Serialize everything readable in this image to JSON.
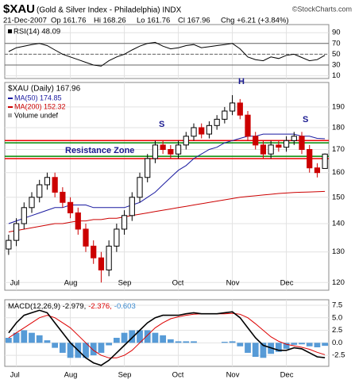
{
  "header": {
    "title": "$XAU",
    "subtitle": "(Gold & Silver Index - Philadelphia) INDX",
    "source": "©StockCharts.com",
    "date": "21-Dec-2007",
    "stats": [
      "Op 161.76",
      "Hi 168.26",
      "Lo 161.76",
      "Cl 167.96",
      "Chg +6.21 (+3.84%)"
    ]
  },
  "chart_data": [
    {
      "type": "rsi",
      "title": "RSI(14) 48.09",
      "color": "#000000",
      "ylim": [
        5,
        105
      ],
      "yticks": [
        10,
        30,
        50,
        70,
        90
      ],
      "reference": [
        70,
        50,
        30
      ],
      "values": [
        55,
        62,
        65,
        68,
        70,
        66,
        58,
        50,
        45,
        40,
        35,
        30,
        28,
        38,
        45,
        50,
        58,
        65,
        70,
        72,
        65,
        60,
        62,
        66,
        68,
        62,
        64,
        66,
        68,
        70,
        60,
        45,
        40,
        38,
        45,
        42,
        48,
        50,
        44,
        38,
        40,
        48.09
      ]
    },
    {
      "type": "candlestick",
      "title": "$XAU (Daily) 167.96",
      "log": true,
      "grid": true,
      "up_color": "#000000",
      "down_color": "#cc0000",
      "categories": [
        null,
        "Jul",
        null,
        null,
        null,
        null,
        null,
        null,
        "Aug",
        null,
        null,
        null,
        null,
        null,
        null,
        "Sep",
        null,
        null,
        null,
        null,
        null,
        null,
        "Oct",
        null,
        null,
        null,
        null,
        null,
        null,
        "Nov",
        null,
        null,
        null,
        null,
        null,
        null,
        "Dec",
        null,
        null,
        null,
        null,
        null
      ],
      "open": [
        131,
        134,
        140,
        146,
        150,
        155,
        158,
        152,
        148,
        144,
        138,
        132,
        128,
        124,
        132,
        138,
        143,
        150,
        158,
        166,
        172,
        170,
        168,
        172,
        176,
        180,
        177,
        181,
        184,
        188,
        192,
        186,
        176,
        172,
        168,
        172,
        171,
        174,
        176,
        170,
        162,
        161.76
      ],
      "high": [
        136,
        142,
        148,
        152,
        157,
        160,
        160,
        154,
        150,
        146,
        140,
        134,
        130,
        134,
        140,
        145,
        152,
        160,
        168,
        174,
        174,
        172,
        174,
        178,
        182,
        182,
        183,
        186,
        190,
        196,
        194,
        188,
        178,
        174,
        174,
        174,
        176,
        178,
        178,
        172,
        164,
        168.26
      ],
      "low": [
        129,
        132,
        138,
        144,
        148,
        153,
        150,
        146,
        142,
        136,
        130,
        126,
        120,
        122,
        130,
        136,
        141,
        148,
        156,
        164,
        168,
        166,
        166,
        170,
        174,
        175,
        175,
        179,
        182,
        186,
        184,
        174,
        170,
        166,
        166,
        169,
        169,
        172,
        168,
        160,
        158,
        161.76
      ],
      "close": [
        134,
        140,
        146,
        150,
        155,
        158,
        152,
        148,
        144,
        138,
        132,
        128,
        124,
        132,
        138,
        143,
        150,
        158,
        166,
        172,
        170,
        168,
        172,
        176,
        180,
        177,
        181,
        184,
        188,
        192,
        186,
        176,
        172,
        168,
        172,
        171,
        174,
        176,
        170,
        162,
        160,
        167.96
      ],
      "series": [
        {
          "name": "MA(50) 174.85",
          "color": "#1a1aa0",
          "values": [
            140,
            141,
            142,
            143,
            144,
            145,
            146,
            146,
            147,
            147,
            147,
            146,
            146,
            146,
            146,
            146,
            147,
            148,
            150,
            152,
            155,
            158,
            161,
            163,
            166,
            168,
            170,
            171,
            173,
            174,
            175,
            176,
            176,
            177,
            177,
            177,
            177,
            177,
            176,
            176,
            175,
            174.85
          ]
        },
        {
          "name": "MA(200) 152.32",
          "color": "#cc0000",
          "values": [
            137,
            137.5,
            138,
            138.5,
            139,
            139.5,
            140,
            140,
            140.5,
            141,
            141,
            141.5,
            141.5,
            142,
            142,
            142.5,
            143,
            143.5,
            144,
            144.5,
            145,
            145.5,
            146,
            146.5,
            147,
            147.5,
            148,
            148.5,
            149,
            149.5,
            150,
            150.3,
            150.6,
            150.9,
            151.2,
            151.5,
            151.7,
            151.9,
            152,
            152.1,
            152.2,
            152.32
          ]
        }
      ],
      "volume_label": "Volume undef",
      "hlines": [
        {
          "value": 174,
          "color": "#ee0000"
        },
        {
          "value": 173,
          "color": "#008800"
        },
        {
          "value": 167,
          "color": "#008800"
        },
        {
          "value": 166,
          "color": "#ee0000"
        }
      ],
      "annotations": [
        "S",
        "H",
        "S",
        "Resistance Zone"
      ],
      "ylim": [
        117.6,
        202.6
      ],
      "yticks": [
        120,
        130,
        140,
        150,
        160,
        170,
        180,
        190
      ]
    },
    {
      "type": "macd",
      "ylim": [
        -4.7,
        8.6
      ],
      "yticks": [
        7.5,
        {
          "value": 5,
          "label": "5.0"
        },
        {
          "value": 2.5,
          "label": "2.5"
        },
        {
          "value": 0,
          "label": "0.0"
        },
        -2.5
      ],
      "series": [
        {
          "name": "MACD(12,26,9) -2.979,",
          "color": "#000000",
          "values": [
            2,
            4,
            5.5,
            6,
            6.5,
            6,
            4,
            2,
            0,
            -1.5,
            -3,
            -4,
            -4.5,
            -3.5,
            -2,
            -0.5,
            1,
            2.5,
            4,
            5,
            5.5,
            5.5,
            5.5,
            5.8,
            6,
            5.8,
            5.8,
            5.8,
            6,
            6.2,
            5,
            3,
            1,
            -0.5,
            -1,
            -1.5,
            -1.5,
            -1,
            -1.2,
            -2,
            -2.8,
            -2.979
          ]
        },
        {
          "name": "-2.376,",
          "color": "#dd0000",
          "values": [
            1,
            2,
            3,
            4,
            5,
            5.5,
            5,
            4,
            3,
            1.5,
            0,
            -1.5,
            -2.5,
            -3,
            -3,
            -2.5,
            -1.5,
            0,
            1.5,
            3,
            4,
            4.8,
            5.2,
            5.5,
            5.7,
            5.8,
            5.8,
            5.8,
            5.8,
            5.9,
            5.7,
            5,
            3.8,
            2.5,
            1.2,
            0.3,
            -0.3,
            -0.6,
            -0.9,
            -1.3,
            -1.9,
            -2.376
          ]
        },
        {
          "name": "-0.603",
          "color": "#3a8ad0",
          "values": [
            1,
            2,
            2.5,
            2,
            1.5,
            0.5,
            -1,
            -2,
            -3,
            -3,
            -3,
            -2.5,
            -2,
            -0.5,
            1,
            2,
            2.5,
            2.5,
            2.5,
            2,
            1.5,
            0.7,
            0.3,
            0.3,
            0.3,
            0,
            0,
            0,
            0.2,
            0.3,
            -0.7,
            -2,
            -2.8,
            -3,
            -2.2,
            -1.8,
            -1.2,
            -0.4,
            -0.3,
            -0.7,
            -0.9,
            -0.603
          ]
        }
      ]
    }
  ]
}
